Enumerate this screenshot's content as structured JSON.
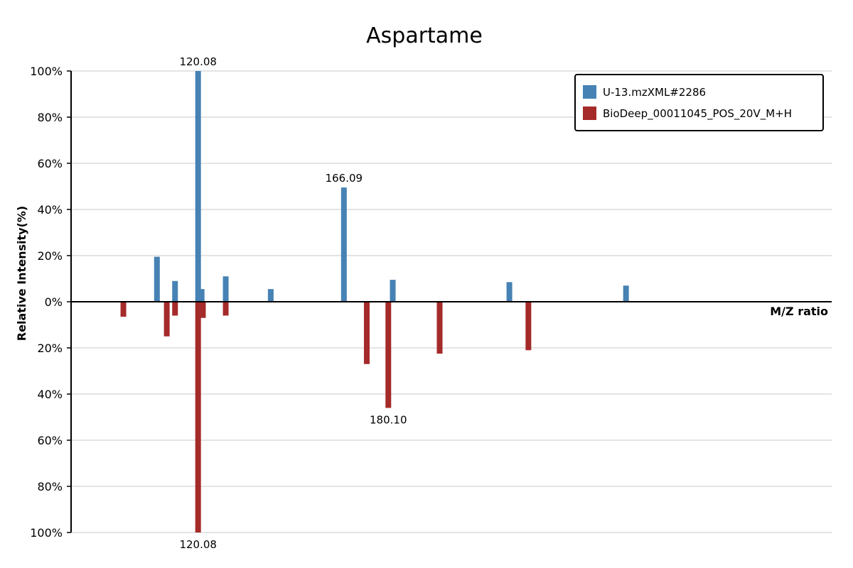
{
  "chart_data": {
    "type": "bar",
    "title": "Aspartame",
    "xlabel": "M/Z ratio",
    "ylabel": "Relative Intensity(%)",
    "xlim": [
      80,
      320
    ],
    "ylim": [
      -100,
      100
    ],
    "y_ticks": [
      {
        "value": 100,
        "label": "100%"
      },
      {
        "value": 80,
        "label": "80%"
      },
      {
        "value": 60,
        "label": "60%"
      },
      {
        "value": 40,
        "label": "40%"
      },
      {
        "value": 20,
        "label": "20%"
      },
      {
        "value": 0,
        "label": "0%"
      },
      {
        "value": -20,
        "label": "20%"
      },
      {
        "value": -40,
        "label": "40%"
      },
      {
        "value": -60,
        "label": "60%"
      },
      {
        "value": -80,
        "label": "80%"
      },
      {
        "value": -100,
        "label": "100%"
      }
    ],
    "grid": true,
    "legend": {
      "position": "top-right"
    },
    "series": [
      {
        "name": "U-13.mzXML#2286",
        "color": "#4682b4",
        "direction": "up",
        "peaks": [
          {
            "mz": 107.1,
            "intensity": 19.5
          },
          {
            "mz": 112.8,
            "intensity": 9
          },
          {
            "mz": 120.08,
            "intensity": 100,
            "label": "120.08"
          },
          {
            "mz": 121.2,
            "intensity": 5.5
          },
          {
            "mz": 128.8,
            "intensity": 11
          },
          {
            "mz": 143.0,
            "intensity": 5.5
          },
          {
            "mz": 166.09,
            "intensity": 49.5,
            "label": "166.09"
          },
          {
            "mz": 181.5,
            "intensity": 9.5
          },
          {
            "mz": 218.3,
            "intensity": 8.5
          },
          {
            "mz": 255.1,
            "intensity": 7
          }
        ]
      },
      {
        "name": "BioDeep_00011045_POS_20V_M+H",
        "color": "#a52a2a",
        "direction": "down",
        "peaks": [
          {
            "mz": 96.5,
            "intensity": 6.5
          },
          {
            "mz": 110.2,
            "intensity": 15
          },
          {
            "mz": 112.8,
            "intensity": 6
          },
          {
            "mz": 120.08,
            "intensity": 100,
            "label": "120.08"
          },
          {
            "mz": 121.6,
            "intensity": 7
          },
          {
            "mz": 128.8,
            "intensity": 6
          },
          {
            "mz": 173.3,
            "intensity": 27
          },
          {
            "mz": 180.1,
            "intensity": 46,
            "label": "180.10"
          },
          {
            "mz": 196.3,
            "intensity": 22.5
          },
          {
            "mz": 224.3,
            "intensity": 21
          }
        ]
      }
    ]
  }
}
